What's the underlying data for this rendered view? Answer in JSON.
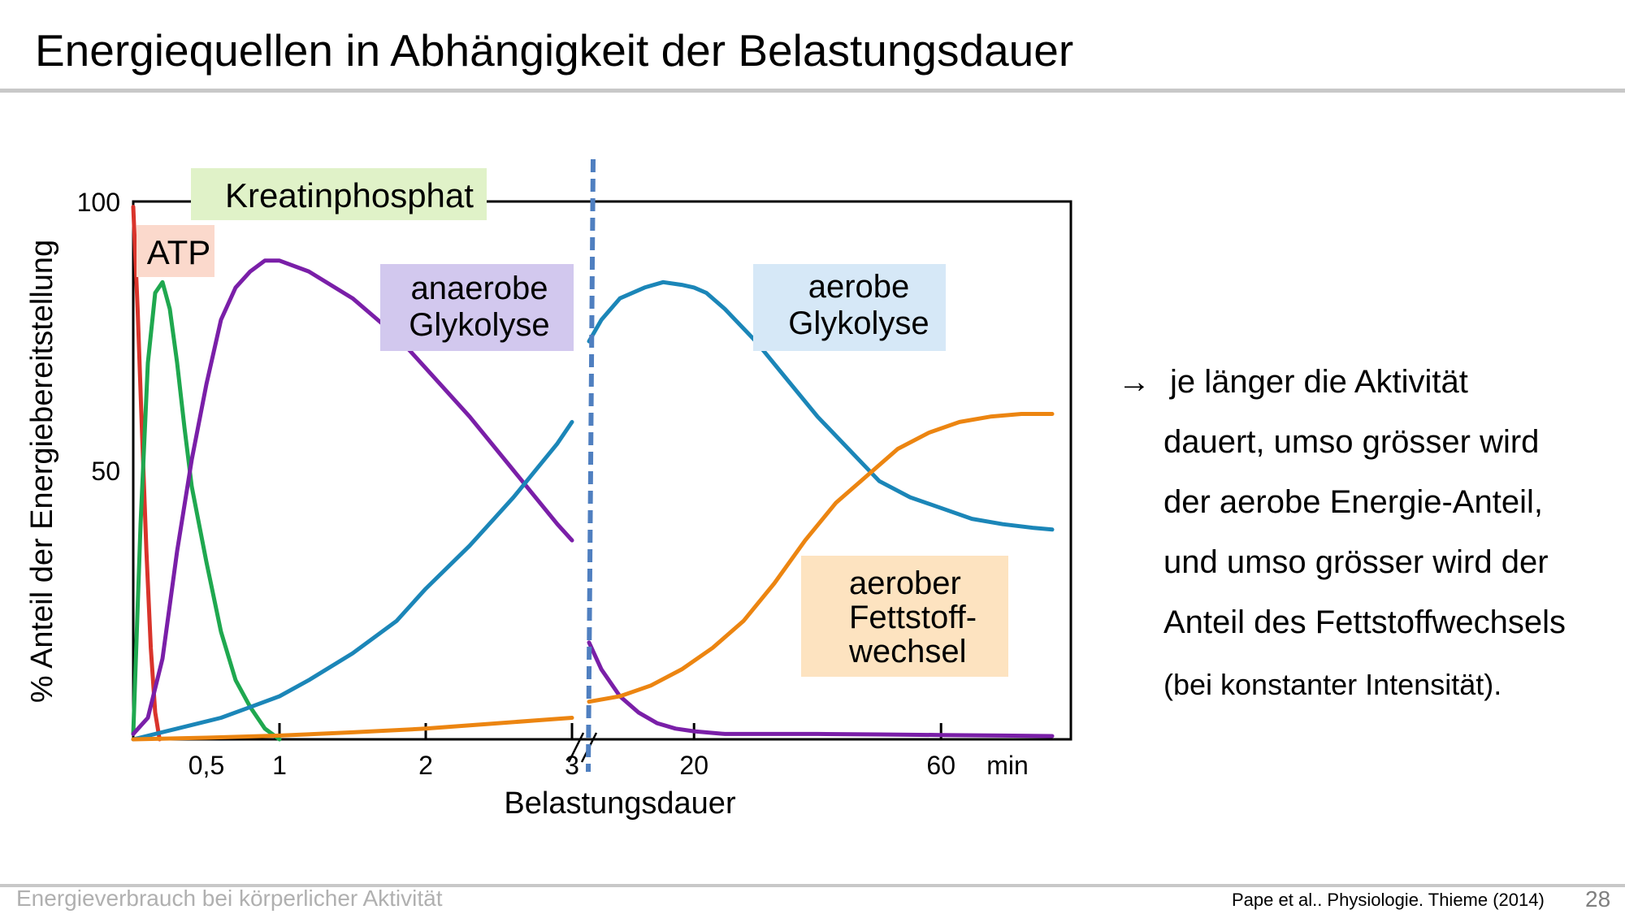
{
  "slide": {
    "title": "Energiequellen in Abhängigkeit der Belastungsdauer",
    "footer_left": "Energieverbrauch bei körperlicher Aktivität",
    "source": "Pape et al.. Physiologie. Thieme (2014)",
    "page_number": "28"
  },
  "side_text": {
    "arrow": "→",
    "lines": [
      "je länger die Aktivität",
      "dauert, umso grösser wird",
      "der aerobe Energie-Anteil,",
      "und umso grösser wird der",
      "Anteil des Fettstoffwechsels",
      "(bei konstanter Intensität)."
    ]
  },
  "chart_data": {
    "type": "line",
    "ylabel": "% Anteil der Energiebereitstellung",
    "xlabel": "Belastungsdauer",
    "ylim": [
      0,
      100
    ],
    "y_ticks": [
      "100",
      "50"
    ],
    "x_ticks_left": [
      "0,5",
      "1",
      "2",
      "3"
    ],
    "x_ticks_right": [
      "20",
      "60",
      "min"
    ],
    "x_axis_break": true,
    "grid": false,
    "series": [
      {
        "name": "ATP",
        "segment": "left",
        "color": "#d9342b",
        "label_bg": "#fbd9cc",
        "x": [
          0,
          0.03,
          0.06,
          0.09,
          0.12,
          0.15,
          0.18
        ],
        "y": [
          99,
          80,
          57,
          35,
          17,
          5,
          0
        ]
      },
      {
        "name": "Kreatinphosphat",
        "segment": "left",
        "color": "#1fa84f",
        "label_bg": "#e0f2c8",
        "x": [
          0,
          0.05,
          0.1,
          0.15,
          0.2,
          0.25,
          0.3,
          0.35,
          0.4,
          0.5,
          0.6,
          0.7,
          0.8,
          0.9,
          1.0
        ],
        "y": [
          1,
          40,
          70,
          83,
          85,
          80,
          70,
          58,
          47,
          33,
          20,
          11,
          6,
          2,
          0
        ]
      },
      {
        "name": "anaerobe Glykolyse",
        "segment": "left",
        "color": "#7a1fa8",
        "label_bg": "#d2c8ee",
        "x": [
          0,
          0.1,
          0.2,
          0.3,
          0.4,
          0.5,
          0.6,
          0.7,
          0.8,
          0.9,
          1.0,
          1.2,
          1.5,
          1.8,
          2.0,
          2.3,
          2.6,
          2.9,
          3.0
        ],
        "y": [
          1,
          4,
          15,
          35,
          52,
          66,
          78,
          84,
          87,
          89,
          89,
          87,
          82,
          75,
          69,
          60,
          50,
          40,
          37
        ]
      },
      {
        "name": "aerobe Glykolyse",
        "segment": "left",
        "color": "#1b86b8",
        "label_bg": "#d6e8f7",
        "x": [
          0,
          0.3,
          0.6,
          0.8,
          1.0,
          1.2,
          1.5,
          1.8,
          2.0,
          2.3,
          2.6,
          2.9,
          3.0
        ],
        "y": [
          0,
          2,
          4,
          6,
          8,
          11,
          16,
          22,
          28,
          36,
          45,
          55,
          59
        ]
      },
      {
        "name": "aerober Fettstoff-wechsel",
        "segment": "left",
        "color": "#ec8511",
        "label_bg": "#fde3c0",
        "x": [
          0,
          0.5,
          1.0,
          1.5,
          2.0,
          2.5,
          3.0
        ],
        "y": [
          0,
          0.3,
          0.7,
          1.3,
          2,
          3,
          4
        ]
      },
      {
        "name": "aerobe Glykolyse",
        "segment": "right",
        "color": "#1b86b8",
        "x": [
          3,
          5,
          8,
          12,
          15,
          18,
          20,
          22,
          25,
          30,
          35,
          40,
          45,
          50,
          55,
          60,
          65,
          70,
          75,
          78
        ],
        "y": [
          74,
          78,
          82,
          84,
          85,
          84.5,
          84,
          83,
          80,
          74,
          67,
          60,
          54,
          48,
          45,
          43,
          41,
          40,
          39.3,
          39
        ]
      },
      {
        "name": "anaerobe Glykolyse",
        "segment": "right",
        "color": "#7a1fa8",
        "x": [
          3,
          5,
          8,
          11,
          14,
          17,
          20,
          25,
          30,
          40,
          50,
          60,
          70,
          78
        ],
        "y": [
          18,
          13,
          8,
          5,
          3,
          2,
          1.5,
          1,
          1,
          1,
          0.9,
          0.8,
          0.7,
          0.6
        ]
      },
      {
        "name": "aerober Fettstoff-wechsel",
        "segment": "right",
        "color": "#ec8511",
        "x": [
          3,
          8,
          13,
          18,
          23,
          28,
          33,
          38,
          43,
          48,
          53,
          58,
          63,
          68,
          73,
          78
        ],
        "y": [
          7,
          8,
          10,
          13,
          17,
          22,
          29,
          37,
          44,
          49,
          54,
          57,
          59,
          60,
          60.5,
          60.5
        ]
      }
    ],
    "label_boxes": [
      {
        "lines": [
          "Kreatinphosphat"
        ],
        "color": "#e0f2c8"
      },
      {
        "lines": [
          "ATP"
        ],
        "color": "#fbd9cc"
      },
      {
        "lines": [
          "anaerobe",
          "Glykolyse"
        ],
        "color": "#d2c8ee"
      },
      {
        "lines": [
          "aerobe",
          "Glykolyse"
        ],
        "color": "#d6e8f7"
      },
      {
        "lines": [
          "aerober",
          "Fettstoff-",
          "wechsel"
        ],
        "color": "#fde3c0"
      }
    ],
    "break_line_color": "#4f7fc0"
  }
}
